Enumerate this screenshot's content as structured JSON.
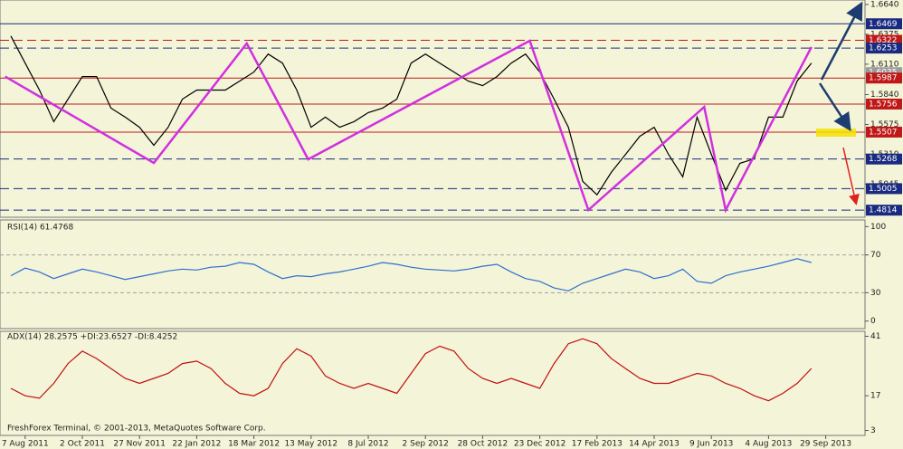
{
  "chart_data": [
    {
      "type": "line",
      "panel": "price",
      "categories": [
        null,
        "7 Aug 2011",
        null,
        null,
        null,
        "2 Oct 2011",
        null,
        null,
        null,
        "27 Nov 2011",
        null,
        null,
        null,
        "22 Jan 2012",
        null,
        null,
        null,
        "18 Mar 2012",
        null,
        null,
        null,
        "13 May 2012",
        null,
        null,
        null,
        "8 Jul 2012",
        null,
        null,
        null,
        "2 Sep 2012",
        null,
        null,
        null,
        "28 Oct 2012",
        null,
        null,
        null,
        "23 Dec 2012",
        null,
        null,
        null,
        "17 Feb 2013",
        null,
        null,
        null,
        "14 Apr 2013",
        null,
        null,
        null,
        "9 Jun 2013",
        null,
        null,
        null,
        "4 Aug 2013",
        null,
        null,
        null,
        "29 Sep 2013"
      ],
      "series": [
        {
          "color": "#000000",
          "values": [
            1.636,
            1.612,
            1.588,
            1.56,
            1.58,
            1.6,
            1.6,
            1.572,
            1.564,
            1.555,
            1.539,
            1.555,
            1.58,
            1.588,
            1.588,
            1.588,
            1.596,
            1.604,
            1.62,
            1.612,
            1.588,
            1.555,
            1.564,
            1.555,
            1.56,
            1.568,
            1.572,
            1.58,
            1.612,
            1.62,
            1.612,
            1.604,
            1.596,
            1.592,
            1.6,
            1.612,
            1.62,
            1.604,
            1.58,
            1.555,
            1.507,
            1.495,
            1.515,
            1.531,
            1.547,
            1.555,
            1.531,
            1.511,
            1.564,
            1.531,
            1.499,
            1.523,
            1.527,
            1.564,
            1.564,
            1.596,
            1.612,
            null
          ]
        }
      ],
      "zigzag": {
        "color": "#d030e0",
        "x": [
          -0.4,
          10,
          16.5,
          20.8,
          36.3,
          40.4,
          48.5,
          50,
          56
        ],
        "values": [
          1.6,
          1.5233,
          1.6294,
          1.5265,
          1.6318,
          1.4815,
          1.5731,
          1.4815,
          1.6262
        ]
      },
      "ylim": [
        1.4751,
        1.668
      ],
      "yticks": [
        {
          "value": 1.664,
          "label": "1.6640"
        },
        1.6375,
        {
          "value": 1.611,
          "label": "1.6110"
        },
        {
          "value": 1.584,
          "label": "1.5840"
        },
        1.5575,
        {
          "value": 1.531,
          "label": "1.5310"
        },
        1.5045
      ],
      "levels": [
        {
          "value": 1.6469,
          "color": "#1a2a80",
          "style": "solid"
        },
        {
          "value": 1.6322,
          "color": "#c01818",
          "style": "dashed"
        },
        {
          "value": 1.6253,
          "color": "#1a2a80",
          "style": "dashed"
        },
        {
          "value": 1.6035,
          "color": "#9a9a9a",
          "style": "none"
        },
        {
          "value": 1.5987,
          "color": "#c01818",
          "style": "solid"
        },
        {
          "value": 1.5756,
          "color": "#c01818",
          "style": "solid"
        },
        {
          "value": 1.5507,
          "color": "#c01818",
          "style": "solid"
        },
        {
          "value": 1.5268,
          "color": "#1a2a80",
          "style": "dashed"
        },
        {
          "value": 1.5005,
          "color": "#1a2a80",
          "style": "dashed"
        },
        {
          "value": 1.4814,
          "color": "#1a2a80",
          "style": "dashed"
        }
      ]
    },
    {
      "type": "line",
      "panel": "rsi",
      "label": "RSI(14) 61.4768",
      "series": [
        {
          "color": "#2f6fd0",
          "values": [
            48,
            56,
            52,
            45,
            50,
            55,
            52,
            48,
            44,
            47,
            50,
            53,
            55,
            54,
            57,
            58,
            62,
            60,
            52,
            45,
            48,
            47,
            50,
            52,
            55,
            58,
            62,
            60,
            57,
            55,
            54,
            53,
            55,
            58,
            60,
            52,
            45,
            42,
            35,
            32,
            40,
            45,
            50,
            55,
            52,
            45,
            48,
            55,
            42,
            40,
            48,
            52,
            55,
            58,
            62,
            66,
            62,
            null
          ]
        }
      ],
      "ylim": [
        -8,
        107
      ],
      "yticks": [
        100,
        70,
        30,
        0
      ],
      "levels": [
        70,
        30
      ]
    },
    {
      "type": "line",
      "panel": "adx",
      "label": "ADX(14) 28.2575 +DI:23.6527 -DI:8.4252",
      "series": [
        {
          "color": "#c01010",
          "values": [
            20,
            17,
            16,
            22,
            30,
            35,
            32,
            28,
            24,
            22,
            24,
            26,
            30,
            31,
            28,
            22,
            18,
            17,
            20,
            30,
            36,
            33,
            25,
            22,
            20,
            22,
            20,
            18,
            26,
            34,
            37,
            35,
            28,
            24,
            22,
            24,
            22,
            20,
            30,
            38,
            40,
            38,
            32,
            28,
            24,
            22,
            22,
            24,
            26,
            25,
            22,
            20,
            17,
            15,
            18,
            22,
            28,
            null
          ]
        }
      ],
      "ylim": [
        1,
        43
      ],
      "yticks": [
        41,
        17,
        3
      ]
    }
  ],
  "footer": "FreshForex Terminal, © 2001-2013, MetaQuotes Software Corp."
}
